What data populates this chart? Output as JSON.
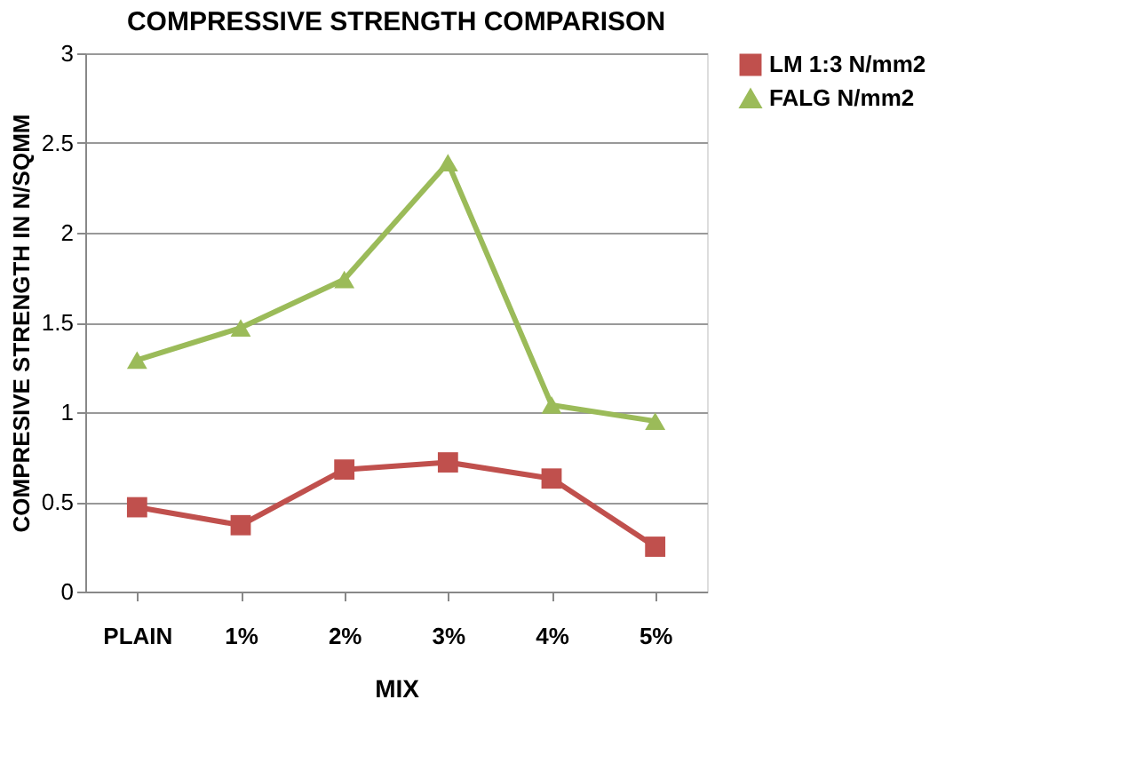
{
  "chart_data": {
    "type": "line",
    "title": "COMPRESSIVE STRENGTH COMPARISON",
    "xlabel": "MIX",
    "ylabel": "COMPRESIVE STRENGTH IN N/SQMM",
    "categories": [
      "PLAIN",
      "1%",
      "2%",
      "3%",
      "4%",
      "5%"
    ],
    "series": [
      {
        "name": "LM 1:3   N/mm2",
        "color": "#c0504d",
        "marker": "square",
        "values": [
          0.47,
          0.37,
          0.68,
          0.72,
          0.63,
          0.25
        ]
      },
      {
        "name": "FALG  N/mm2",
        "color": "#9bbb59",
        "marker": "triangle",
        "values": [
          1.29,
          1.47,
          1.74,
          2.39,
          1.04,
          0.95
        ]
      }
    ],
    "ylim": [
      0,
      3
    ],
    "yticks": [
      {
        "value": 0,
        "label": "0"
      },
      0.5,
      {
        "value": 1,
        "label": "1"
      },
      1.5,
      {
        "value": 2,
        "label": "2"
      },
      2.5,
      {
        "value": 3,
        "label": "3"
      }
    ],
    "grid": "y",
    "legend": "right",
    "line_style": "solid"
  }
}
